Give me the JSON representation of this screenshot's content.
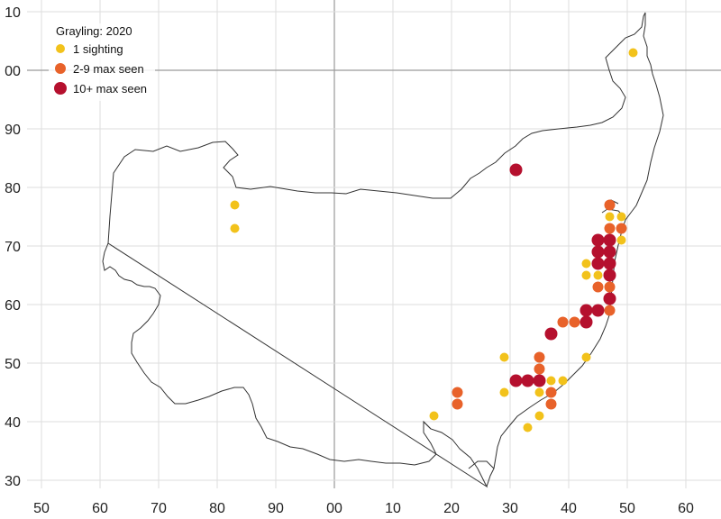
{
  "chart_data": {
    "type": "scatter",
    "title": "Grayling:  2020",
    "x_tick_labels": [
      "50",
      "60",
      "70",
      "80",
      "90",
      "00",
      "10",
      "20",
      "30",
      "40",
      "50",
      "60"
    ],
    "y_tick_labels": [
      "10",
      "00",
      "90",
      "80",
      "70",
      "60",
      "50",
      "40",
      "30"
    ],
    "legend": [
      {
        "label": "1 sighting",
        "color": "#F2C21B"
      },
      {
        "label": "2-9 max seen",
        "color": "#E8622A"
      },
      {
        "label": "10+ max seen",
        "color": "#B5102E"
      }
    ],
    "grid": true,
    "legend_position": "top-left",
    "series": [
      {
        "name": "1 sighting",
        "color": "#F2C21B",
        "points": [
          [
            83,
            77
          ],
          [
            83,
            73
          ],
          [
            151,
            103
          ],
          [
            147,
            75
          ],
          [
            149,
            75
          ],
          [
            149,
            71
          ],
          [
            143,
            67
          ],
          [
            143,
            65
          ],
          [
            145,
            65
          ],
          [
            129,
            51
          ],
          [
            129,
            45
          ],
          [
            143,
            51
          ],
          [
            135,
            45
          ],
          [
            137,
            47
          ],
          [
            139,
            47
          ],
          [
            117,
            41
          ],
          [
            133,
            39
          ],
          [
            135,
            41
          ]
        ]
      },
      {
        "name": "2-9 max seen",
        "color": "#E8622A",
        "points": [
          [
            147,
            77
          ],
          [
            147,
            73
          ],
          [
            149,
            73
          ],
          [
            145,
            67
          ],
          [
            147,
            63
          ],
          [
            145,
            63
          ],
          [
            147,
            59
          ],
          [
            139,
            57
          ],
          [
            141,
            57
          ],
          [
            135,
            51
          ],
          [
            135,
            49
          ],
          [
            137,
            45
          ],
          [
            137,
            43
          ],
          [
            121,
            45
          ],
          [
            121,
            43
          ]
        ]
      },
      {
        "name": "10+ max seen",
        "color": "#B5102E",
        "points": [
          [
            131,
            83
          ],
          [
            145,
            71
          ],
          [
            147,
            71
          ],
          [
            145,
            69
          ],
          [
            147,
            69
          ],
          [
            145,
            67
          ],
          [
            147,
            67
          ],
          [
            147,
            65
          ],
          [
            147,
            61
          ],
          [
            143,
            59
          ],
          [
            145,
            59
          ],
          [
            143,
            57
          ],
          [
            137,
            55
          ],
          [
            131,
            47
          ],
          [
            133,
            47
          ],
          [
            135,
            47
          ]
        ]
      }
    ]
  }
}
